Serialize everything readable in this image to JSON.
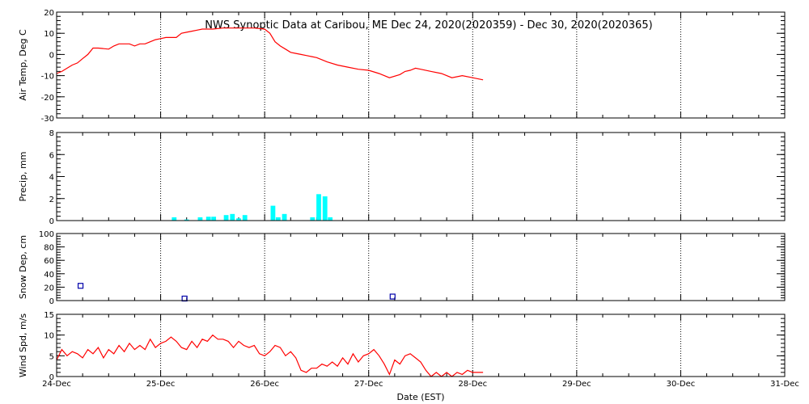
{
  "title": "NWS Synoptic Data at Caribou, ME    Dec 24, 2020(2020359) - Dec 30, 2020(2020365)",
  "chart_data": {
    "type": "line",
    "xlabel": "Date (EST)",
    "x_ticks": [
      "24-Dec",
      "25-Dec",
      "26-Dec",
      "27-Dec",
      "28-Dec",
      "29-Dec",
      "30-Dec",
      "31-Dec"
    ],
    "xlim": [
      0,
      7
    ],
    "grid": true,
    "panels": [
      {
        "id": "temp",
        "type": "line",
        "ylabel": "Air Temp, Deg C",
        "ylim": [
          -30,
          20
        ],
        "yticks": [
          20,
          10,
          0,
          -10,
          -20,
          -30
        ],
        "color": "#ff0000",
        "series": [
          {
            "x": [
              0.0,
              0.05,
              0.1,
              0.15,
              0.2,
              0.25,
              0.3,
              0.35,
              0.4,
              0.5,
              0.55,
              0.6,
              0.65,
              0.7,
              0.75,
              0.8,
              0.85,
              0.9,
              0.95,
              1.0,
              1.05,
              1.1,
              1.15,
              1.2,
              1.25,
              1.3,
              1.35,
              1.4,
              1.45,
              1.5,
              1.6,
              1.7,
              1.8,
              1.9,
              2.0,
              2.05,
              2.1,
              2.15,
              2.2,
              2.25,
              2.3,
              2.35,
              2.4,
              2.45,
              2.5,
              2.55,
              2.6,
              2.7,
              2.8,
              2.9,
              3.0,
              3.1,
              3.2,
              3.3,
              3.35,
              3.4,
              3.45,
              3.5,
              3.6,
              3.7,
              3.8,
              3.9,
              4.0,
              4.1
            ],
            "y": [
              -9,
              -8,
              -6.5,
              -5,
              -4,
              -2,
              0,
              3,
              3,
              2.5,
              4,
              5,
              5,
              5,
              4,
              5,
              5,
              6,
              7,
              7.5,
              8,
              8,
              8,
              10,
              10.5,
              11,
              11.5,
              12,
              12,
              12,
              12.5,
              12.5,
              12.5,
              12.5,
              12,
              10,
              6,
              4,
              2.5,
              1,
              0.5,
              0,
              -0.5,
              -1,
              -1.5,
              -2.5,
              -3.5,
              -5,
              -6,
              -7,
              -7.5,
              -9,
              -11,
              -9.5,
              -8,
              -7.5,
              -6.5,
              -7,
              -8,
              -9,
              -11,
              -10,
              -11,
              -12
            ]
          }
        ]
      },
      {
        "id": "precip",
        "type": "bar",
        "ylabel": "Precip, mm",
        "ylim": [
          0,
          8
        ],
        "yticks": [
          8,
          6,
          4,
          2,
          0
        ],
        "color": "#00ffff",
        "bars": {
          "x": [
            1.13,
            1.25,
            1.38,
            1.46,
            1.51,
            1.63,
            1.69,
            1.75,
            1.81,
            2.08,
            2.13,
            2.19,
            2.46,
            2.52,
            2.58,
            2.63
          ],
          "values": [
            0.3,
            0.1,
            0.3,
            0.35,
            0.35,
            0.5,
            0.6,
            0.2,
            0.5,
            1.35,
            0.3,
            0.6,
            0.3,
            2.4,
            2.2,
            0.3
          ]
        }
      },
      {
        "id": "snow",
        "type": "scatter",
        "ylabel": "Snow Dep, cm",
        "ylim": [
          0,
          100
        ],
        "yticks": [
          100,
          80,
          60,
          40,
          20,
          0
        ],
        "color": "#0000aa",
        "series": [
          {
            "x": [
              0.23,
              1.23,
              3.23
            ],
            "y": [
              22,
              3,
              6
            ]
          }
        ]
      },
      {
        "id": "wind",
        "type": "line",
        "ylabel": "Wind Spd, m/s",
        "ylim": [
          0,
          15
        ],
        "yticks": [
          15,
          10,
          5,
          0
        ],
        "color": "#ff0000",
        "series": [
          {
            "x": [
              0.0,
              0.05,
              0.1,
              0.15,
              0.2,
              0.25,
              0.3,
              0.35,
              0.4,
              0.45,
              0.5,
              0.55,
              0.6,
              0.65,
              0.7,
              0.75,
              0.8,
              0.85,
              0.9,
              0.95,
              1.0,
              1.05,
              1.1,
              1.15,
              1.2,
              1.25,
              1.3,
              1.35,
              1.4,
              1.45,
              1.5,
              1.55,
              1.6,
              1.65,
              1.7,
              1.75,
              1.8,
              1.85,
              1.9,
              1.95,
              2.0,
              2.05,
              2.1,
              2.15,
              2.2,
              2.25,
              2.3,
              2.35,
              2.4,
              2.45,
              2.5,
              2.55,
              2.6,
              2.65,
              2.7,
              2.75,
              2.8,
              2.85,
              2.9,
              2.95,
              3.0,
              3.05,
              3.1,
              3.15,
              3.2,
              3.25,
              3.3,
              3.35,
              3.4,
              3.45,
              3.5,
              3.55,
              3.6,
              3.65,
              3.7,
              3.75,
              3.8,
              3.85,
              3.9,
              3.95,
              4.0,
              4.05,
              4.1
            ],
            "y": [
              4,
              6.5,
              5,
              6,
              5.5,
              4.5,
              6.5,
              5.5,
              7,
              4.5,
              6.5,
              5.5,
              7.5,
              6,
              8,
              6.5,
              7.5,
              6.5,
              9,
              7,
              8,
              8.5,
              9.5,
              8.5,
              7,
              6.5,
              8.5,
              7,
              9,
              8.5,
              10,
              9,
              9,
              8.5,
              7,
              8.5,
              7.5,
              7,
              7.5,
              5.5,
              5,
              6,
              7.5,
              7,
              5,
              6,
              4.5,
              1.5,
              1,
              2,
              2,
              3,
              2.5,
              3.5,
              2.5,
              4.5,
              3,
              5.5,
              3.5,
              5,
              5.5,
              6.5,
              5,
              3,
              0.5,
              4,
              3,
              5,
              5.5,
              4.5,
              3.5,
              1.5,
              0,
              1,
              0,
              1,
              0,
              1,
              0.5,
              1.5,
              1,
              1,
              1
            ]
          }
        ]
      }
    ]
  }
}
